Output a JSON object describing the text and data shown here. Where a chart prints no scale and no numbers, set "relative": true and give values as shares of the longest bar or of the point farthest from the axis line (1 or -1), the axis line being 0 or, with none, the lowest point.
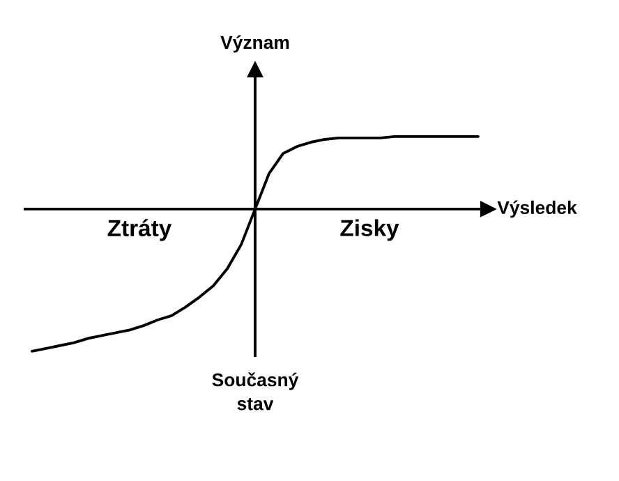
{
  "chart_data": {
    "type": "line",
    "relative": true,
    "xlabel": "Výsledek",
    "ylabel": "Význam",
    "annotations": [
      "Ztráty",
      "Zisky",
      "Současný\nstav"
    ],
    "categories": [
      null,
      null,
      null,
      null,
      null,
      null,
      null,
      null,
      null,
      null,
      null,
      null,
      null,
      null,
      null,
      null,
      null,
      null,
      null,
      null,
      null,
      null,
      null,
      null,
      null,
      null,
      null,
      null,
      null,
      null,
      null,
      null,
      null
    ],
    "values": [
      -1.0,
      -0.98,
      -0.96,
      -0.94,
      -0.91,
      -0.89,
      -0.87,
      -0.85,
      -0.82,
      -0.78,
      -0.75,
      -0.69,
      -0.62,
      -0.54,
      -0.42,
      -0.25,
      0,
      0.25,
      0.39,
      0.44,
      0.47,
      0.49,
      0.5,
      0.5,
      0.5,
      0.5,
      0.51,
      0.51,
      0.51,
      0.51,
      0.51,
      0.51,
      0.51
    ],
    "color": "#000000",
    "legend": false,
    "marker": "none",
    "line_style": "solid"
  }
}
